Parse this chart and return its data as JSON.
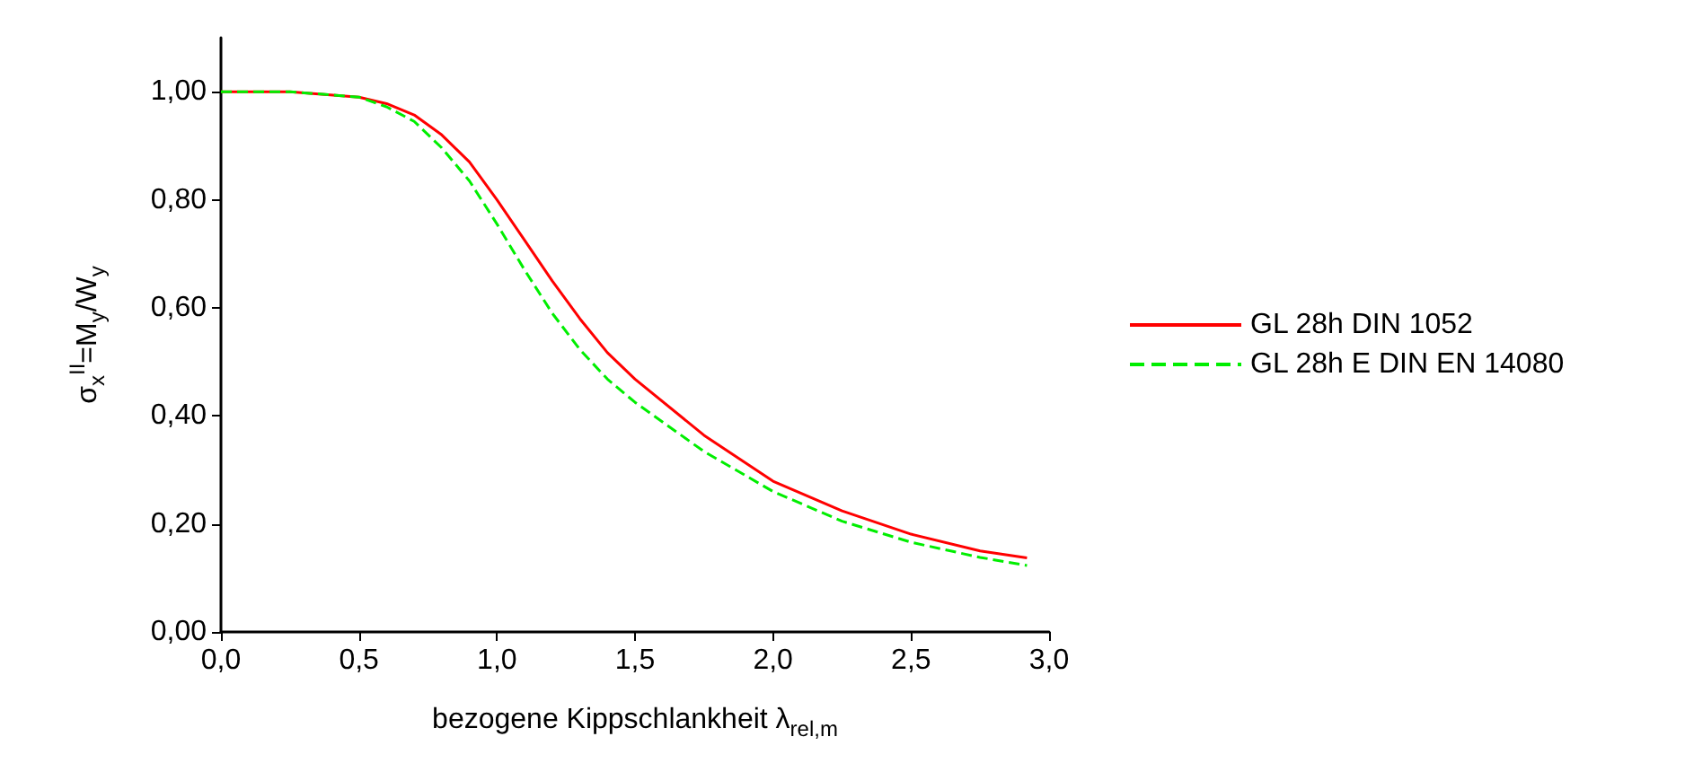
{
  "chart_data": {
    "type": "line",
    "xlabel": "bezogene Kippschlankheit λ$_{rel,m}$",
    "ylabel": "σ$_{x}$$^{II}$=M$_{y}$/W$_{y}$",
    "xlim": [
      0,
      3
    ],
    "xticks": [
      {
        "value": 0,
        "label": "0,0"
      },
      {
        "value": 0.5,
        "label": "0,5"
      },
      {
        "value": 1,
        "label": "1,0"
      },
      {
        "value": 1.5,
        "label": "1,5"
      },
      {
        "value": 2,
        "label": "2,0"
      },
      {
        "value": 2.5,
        "label": "2,5"
      },
      {
        "value": 3,
        "label": "3,0"
      }
    ],
    "ylim": [
      0,
      1.1
    ],
    "yticks": [
      {
        "value": 0,
        "label": "0,00"
      },
      {
        "value": 0.2,
        "label": "0,20"
      },
      {
        "value": 0.4,
        "label": "0,40"
      },
      {
        "value": 0.6,
        "label": "0,60"
      },
      {
        "value": 0.8,
        "label": "0,80"
      },
      {
        "value": 1,
        "label": "1,00"
      }
    ],
    "grid": false,
    "legend": "right",
    "marker": "none",
    "series": [
      {
        "name": "GL 28h DIN 1052",
        "color": "#ff0000",
        "line_style": "solid",
        "x": [
          0,
          0.25,
          0.5,
          0.6,
          0.7,
          0.8,
          0.9,
          1.0,
          1.1,
          1.2,
          1.3,
          1.4,
          1.5,
          1.75,
          2.0,
          2.25,
          2.5,
          2.75,
          2.92
        ],
        "values": [
          1.0,
          1.0,
          0.99,
          0.978,
          0.957,
          0.92,
          0.87,
          0.8,
          0.725,
          0.65,
          0.58,
          0.517,
          0.468,
          0.364,
          0.279,
          0.224,
          0.181,
          0.15,
          0.137
        ]
      },
      {
        "name": "GL 28h E DIN EN 14080",
        "color": "#00ee00",
        "line_style": "dashed",
        "x": [
          0,
          0.25,
          0.5,
          0.6,
          0.7,
          0.8,
          0.9,
          1.0,
          1.1,
          1.2,
          1.3,
          1.4,
          1.5,
          1.75,
          2.0,
          2.25,
          2.5,
          2.75,
          2.92
        ],
        "values": [
          1.0,
          1.0,
          0.99,
          0.972,
          0.945,
          0.896,
          0.835,
          0.755,
          0.67,
          0.59,
          0.523,
          0.468,
          0.425,
          0.334,
          0.26,
          0.205,
          0.166,
          0.138,
          0.123
        ]
      }
    ]
  }
}
